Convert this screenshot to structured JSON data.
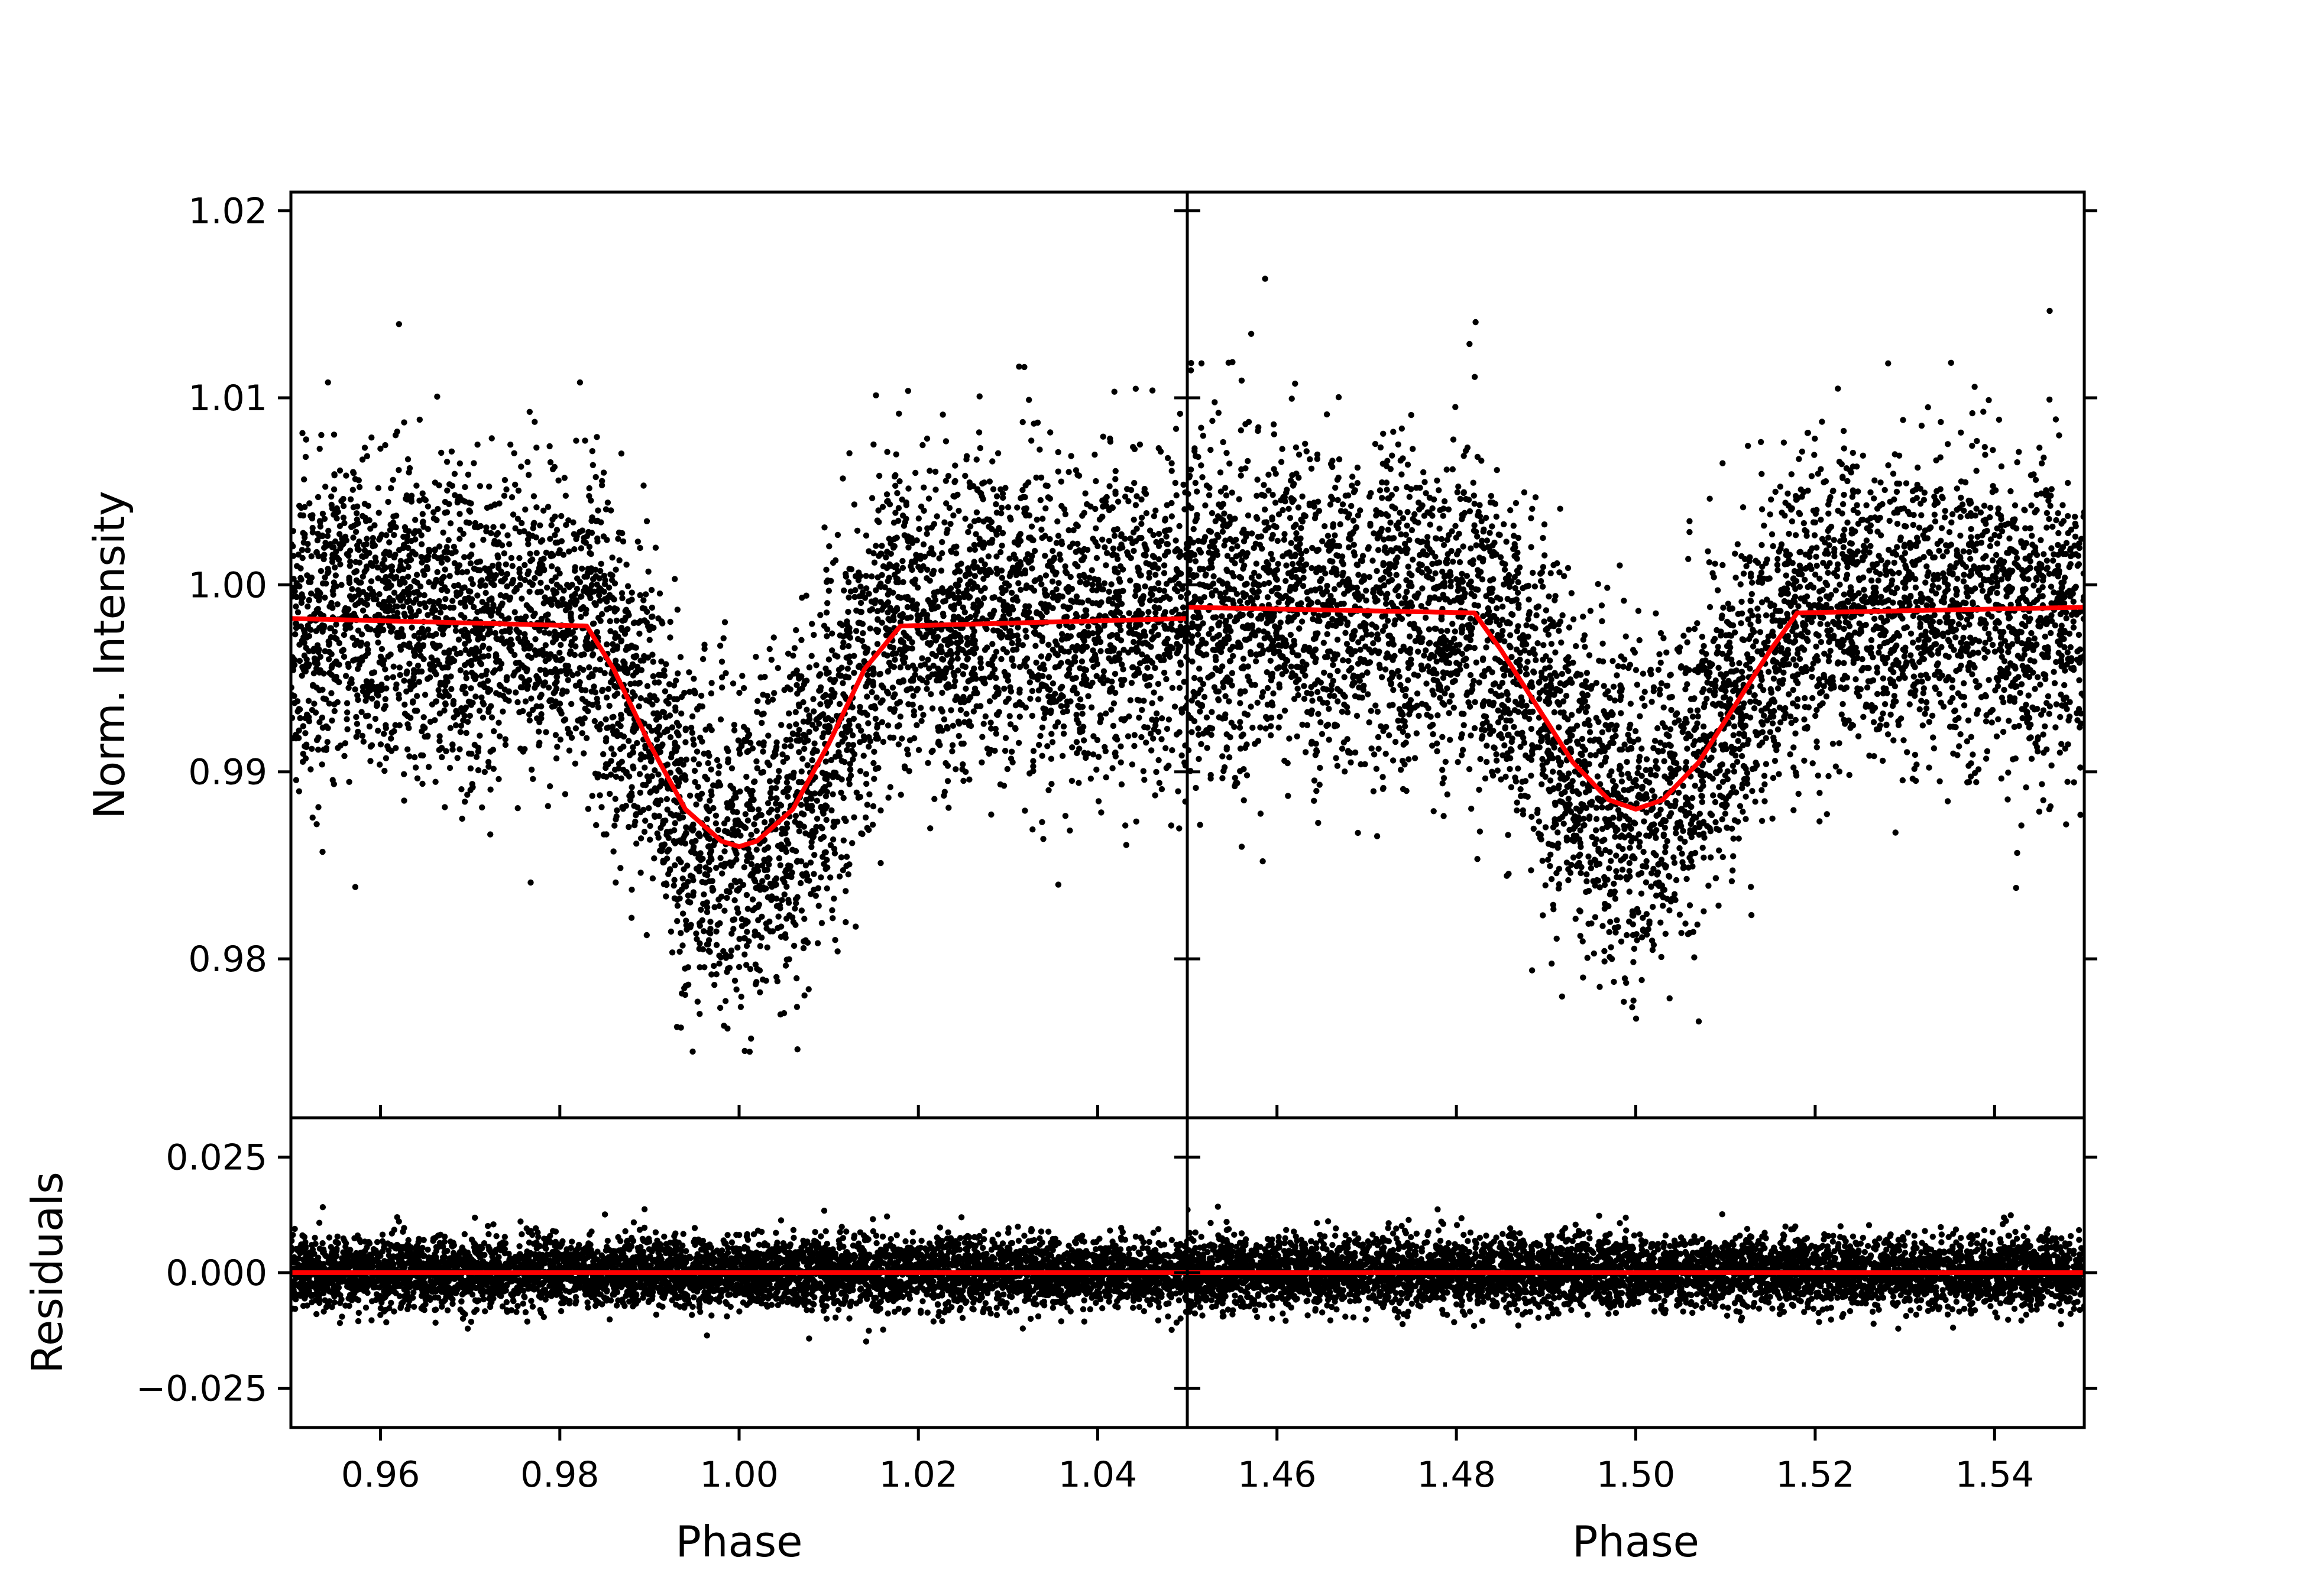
{
  "chart_data": {
    "type": "scatter",
    "title": "",
    "layout": "2x2 grid, shared y per row, shared x per column",
    "colors": {
      "points": "#000000",
      "model": "#ff0000",
      "axes": "#000000",
      "background": "#ffffff"
    },
    "ylabel_top": "Norm. Intensity",
    "ylabel_bottom": "Residuals",
    "xlabel": "Phase",
    "ylim_top": [
      0.9715,
      1.021
    ],
    "yticks_top": [
      "1.02",
      "1.01",
      "1.00",
      "0.99",
      "0.98"
    ],
    "ytick_values_top": [
      1.02,
      1.01,
      1.0,
      0.99,
      0.98
    ],
    "ylim_bottom": [
      -0.0335,
      0.0335
    ],
    "yticks_bottom": [
      "0.025",
      "0.000",
      "−0.025"
    ],
    "ytick_values_bottom": [
      0.025,
      0.0,
      -0.025
    ],
    "grid": false,
    "legend": "none",
    "panels": [
      {
        "name": "primary-eclipse",
        "xlim": [
          0.95,
          1.05
        ],
        "xticks": [
          "0.96",
          "0.98",
          "1.00",
          "1.02",
          "1.04"
        ],
        "xtick_values": [
          0.96,
          0.98,
          1.0,
          1.02,
          1.04
        ],
        "data": {
          "center": 1.0,
          "ingress": 0.983,
          "egress": 1.018,
          "baseline_left": 0.9982,
          "baseline_right": 0.9982,
          "baseline_at_contact": 0.9978,
          "depth_minimum": 0.986,
          "scatter_sigma_out": 0.0042,
          "scatter_sigma_in": 0.0045,
          "approx_points": 5200,
          "lowest_points": 0.974
        },
        "model_curve_x": [
          0.95,
          0.983,
          0.986,
          0.99,
          0.994,
          0.998,
          1.0,
          1.002,
          1.006,
          1.01,
          1.014,
          1.018,
          1.05
        ],
        "model_curve_y": [
          0.9982,
          0.9978,
          0.9955,
          0.9915,
          0.988,
          0.9863,
          0.986,
          0.9863,
          0.988,
          0.9915,
          0.9955,
          0.9978,
          0.9982
        ],
        "residual_sigma": 0.004,
        "residual_model": 0.0
      },
      {
        "name": "secondary-eclipse",
        "xlim": [
          1.45,
          1.55
        ],
        "xticks": [
          "1.46",
          "1.48",
          "1.50",
          "1.52",
          "1.54"
        ],
        "xtick_values": [
          1.46,
          1.48,
          1.5,
          1.52,
          1.54
        ],
        "data": {
          "center": 1.5,
          "ingress": 1.482,
          "egress": 1.518,
          "baseline_left": 0.9988,
          "baseline_right": 0.9988,
          "baseline_at_contact": 0.9985,
          "depth_minimum": 0.988,
          "scatter_sigma_out": 0.0042,
          "scatter_sigma_in": 0.0045,
          "approx_points": 5200,
          "lowest_points": 0.9775
        },
        "model_curve_x": [
          1.45,
          1.482,
          1.485,
          1.489,
          1.493,
          1.497,
          1.5,
          1.503,
          1.507,
          1.511,
          1.515,
          1.518,
          1.55
        ],
        "model_curve_y": [
          0.9988,
          0.9985,
          0.9965,
          0.9935,
          0.9905,
          0.9885,
          0.988,
          0.9885,
          0.9905,
          0.9935,
          0.9965,
          0.9985,
          0.9988
        ],
        "residual_sigma": 0.004,
        "residual_model": 0.0
      }
    ]
  }
}
